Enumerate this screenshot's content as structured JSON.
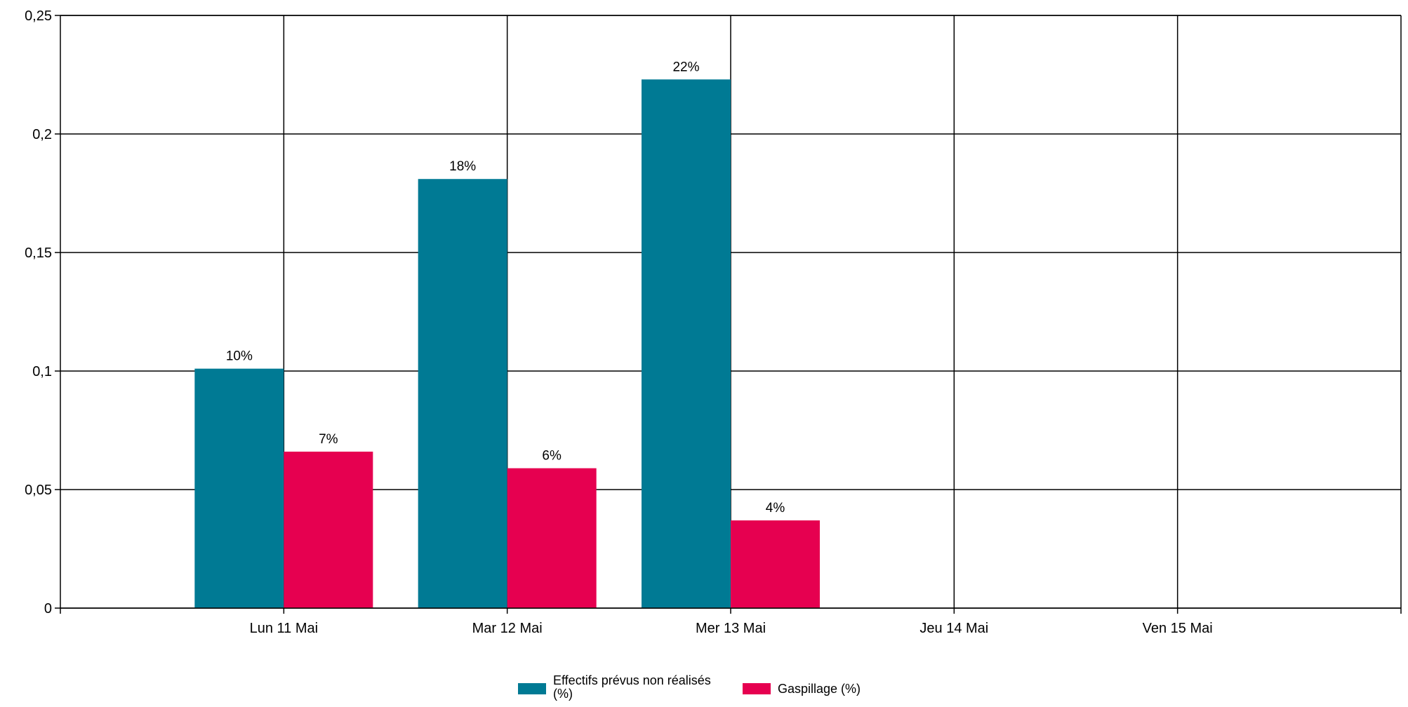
{
  "chart_data": {
    "type": "bar",
    "categories": [
      "Lun 11 Mai",
      "Mar 12 Mai",
      "Mer 13 Mai",
      "Jeu 14 Mai",
      "Ven 15 Mai"
    ],
    "series": [
      {
        "name": "Effectifs prévus non réalisés (%)",
        "name_lines": [
          "Effectifs prévus non réalisés",
          "(%)"
        ],
        "color": "#007A94",
        "values": [
          0.101,
          0.181,
          0.223,
          null,
          null
        ],
        "labels": [
          "10%",
          "18%",
          "22%",
          "",
          ""
        ]
      },
      {
        "name": "Gaspillage (%)",
        "name_lines": [
          "Gaspillage (%)"
        ],
        "color": "#E60050",
        "values": [
          0.066,
          0.059,
          0.037,
          null,
          null
        ],
        "labels": [
          "7%",
          "6%",
          "4%",
          "",
          ""
        ]
      }
    ],
    "yticks": [
      {
        "value": 0,
        "label": "0"
      },
      {
        "value": 0.05,
        "label": "0,05"
      },
      {
        "value": 0.1,
        "label": "0,1"
      },
      {
        "value": 0.15,
        "label": "0,15"
      },
      {
        "value": 0.2,
        "label": "0,2"
      },
      {
        "value": 0.25,
        "label": "0,25"
      }
    ],
    "ylim": [
      0,
      0.25
    ],
    "grid": true,
    "legend_position": "bottom-center",
    "title": "",
    "xlabel": "",
    "ylabel": ""
  }
}
